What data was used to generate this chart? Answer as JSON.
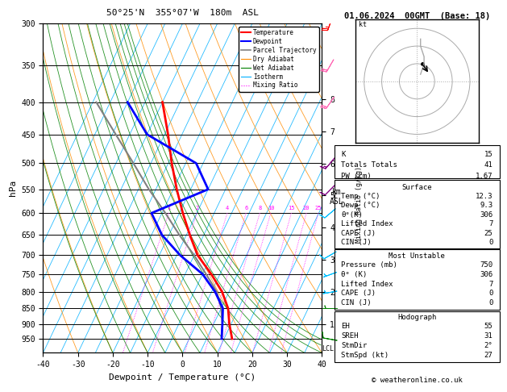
{
  "title_left": "50°25'N  355°07'W  180m  ASL",
  "title_right": "01.06.2024  00GMT  (Base: 18)",
  "xlabel": "Dewpoint / Temperature (°C)",
  "ylabel_left": "hPa",
  "pressure_levels": [
    300,
    350,
    400,
    450,
    500,
    550,
    600,
    650,
    700,
    750,
    800,
    850,
    900,
    950
  ],
  "xlim": [
    -40,
    40
  ],
  "temp_C": [
    12.3,
    9.5,
    7.0,
    3.0,
    -2.5,
    -9.0,
    -14.0,
    -19.0,
    -24.0,
    -29.0,
    -34.0,
    -40.0
  ],
  "temp_P": [
    950,
    900,
    850,
    800,
    750,
    700,
    650,
    600,
    550,
    500,
    450,
    400
  ],
  "dewp_C": [
    9.3,
    7.5,
    5.5,
    1.0,
    -5.0,
    -14.0,
    -22.0,
    -28.0,
    -15.0,
    -22.0,
    -40.0,
    -50.0
  ],
  "dewp_P": [
    950,
    900,
    850,
    800,
    750,
    700,
    650,
    600,
    550,
    500,
    450,
    400
  ],
  "parcel_C": [
    9.3,
    7.5,
    5.0,
    1.5,
    -4.0,
    -10.0,
    -17.0,
    -24.0,
    -32.0,
    -40.0,
    -49.0,
    -59.0
  ],
  "parcel_P": [
    950,
    900,
    850,
    800,
    750,
    700,
    650,
    600,
    550,
    500,
    450,
    400
  ],
  "temp_color": "#ff0000",
  "dewp_color": "#0000ff",
  "parcel_color": "#808080",
  "dry_adiabat_color": "#ff8c00",
  "wet_adiabat_color": "#008000",
  "isotherm_color": "#00b0ff",
  "mixing_ratio_color": "#ff00ff",
  "skew_factor": 45,
  "pmin": 300,
  "pmax": 1000,
  "stats": {
    "K": 15,
    "TT": 41,
    "PW": 1.67,
    "surf_temp": 12.3,
    "surf_dewp": 9.3,
    "surf_theta_e": 306,
    "surf_li": 7,
    "surf_cape": 25,
    "surf_cin": 0,
    "mu_pressure": 750,
    "mu_theta_e": 306,
    "mu_li": 7,
    "mu_cape": 0,
    "mu_cin": 0,
    "EH": 55,
    "SREH": 31,
    "StmDir": 2,
    "StmSpd": 27
  },
  "wind_barb_pressures": [
    300,
    350,
    400,
    500,
    550,
    600,
    700,
    750,
    800,
    850,
    950
  ],
  "wind_barb_speeds": [
    25,
    20,
    20,
    15,
    12,
    10,
    8,
    5,
    5,
    5,
    8
  ],
  "wind_barb_dirs": [
    200,
    210,
    215,
    220,
    225,
    230,
    240,
    250,
    260,
    270,
    280
  ],
  "wind_barb_colors": [
    "#ff0000",
    "#ff69b4",
    "#ff69b4",
    "#800080",
    "#800080",
    "#00bfff",
    "#00bfff",
    "#00bfff",
    "#00bfff",
    "#008000",
    "#008000"
  ]
}
